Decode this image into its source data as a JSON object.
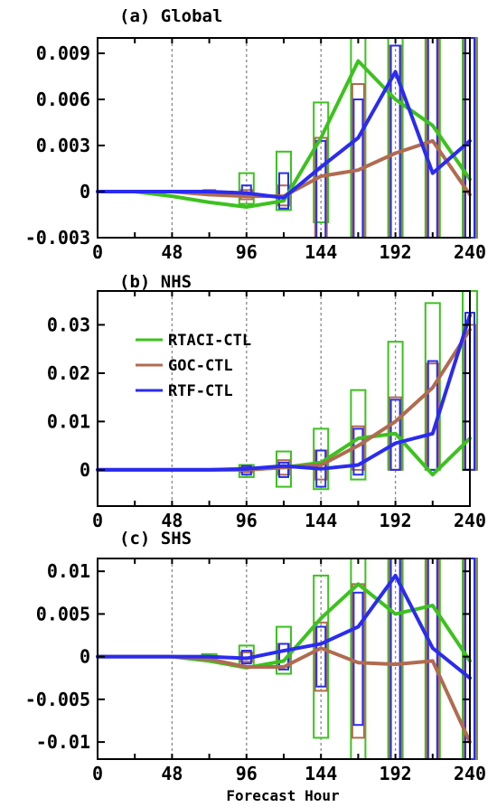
{
  "xlabel": "Forecast Hour",
  "colors": {
    "RTACI-CTL": "#3cc21e",
    "GOC-CTL": "#b06b50",
    "RTF-CTL": "#2b2bf0",
    "grid": "#888888",
    "frame": "#000000"
  },
  "legend": [
    {
      "name": "RTACI-CTL"
    },
    {
      "name": "GOC-CTL"
    },
    {
      "name": "RTF-CTL"
    }
  ],
  "chart_data": [
    {
      "type": "line",
      "title": "(a)  Global",
      "x": [
        0,
        24,
        48,
        72,
        96,
        120,
        144,
        168,
        192,
        216,
        240
      ],
      "xticks": [
        "0",
        "48",
        "96",
        "144",
        "192",
        "240"
      ],
      "xlim": [
        0,
        240
      ],
      "ylim": [
        -0.003,
        0.01
      ],
      "yticks": [
        "-0.003",
        "0",
        "0.003",
        "0.006",
        "0.009"
      ],
      "series": [
        {
          "name": "RTACI-CTL",
          "values": [
            0,
            0,
            -0.0003,
            -0.0007,
            -0.001,
            -0.0006,
            0.0035,
            0.0085,
            0.006,
            0.0043,
            0.0008
          ]
        },
        {
          "name": "GOC-CTL",
          "values": [
            0,
            0,
            0,
            -0.0002,
            -0.0003,
            -0.0003,
            0.001,
            0.0014,
            0.0025,
            0.0033,
            -0.0002
          ]
        },
        {
          "name": "RTF-CTL",
          "values": [
            0,
            0,
            0,
            0,
            -0.0001,
            -0.0004,
            0.0016,
            0.0035,
            0.0078,
            0.0012,
            0.0033
          ]
        }
      ],
      "boxes": [
        {
          "series": "RTACI-CTL",
          "x": 96,
          "low": -0.0008,
          "high": 0.0012
        },
        {
          "series": "RTACI-CTL",
          "x": 120,
          "low": -0.0012,
          "high": 0.0026
        },
        {
          "series": "RTACI-CTL",
          "x": 144,
          "low": -0.002,
          "high": 0.0058
        },
        {
          "series": "RTACI-CTL",
          "x": 168,
          "low": -0.003,
          "high": 0.0105
        },
        {
          "series": "RTACI-CTL",
          "x": 192,
          "low": -0.003,
          "high": 0.0105
        },
        {
          "series": "RTACI-CTL",
          "x": 216,
          "low": -0.003,
          "high": 0.0105
        },
        {
          "series": "RTACI-CTL",
          "x": 240,
          "low": -0.003,
          "high": 0.0105
        },
        {
          "series": "GOC-CTL",
          "x": 72,
          "low": -0.0002,
          "high": 0.0001
        },
        {
          "series": "GOC-CTL",
          "x": 96,
          "low": -0.0005,
          "high": 0.0001
        },
        {
          "series": "GOC-CTL",
          "x": 120,
          "low": -0.0009,
          "high": 0.0004
        },
        {
          "series": "GOC-CTL",
          "x": 144,
          "low": -0.003,
          "high": 0.0035
        },
        {
          "series": "GOC-CTL",
          "x": 168,
          "low": -0.003,
          "high": 0.007
        },
        {
          "series": "GOC-CTL",
          "x": 192,
          "low": -0.003,
          "high": 0.0095
        },
        {
          "series": "GOC-CTL",
          "x": 216,
          "low": -0.003,
          "high": 0.0105
        },
        {
          "series": "GOC-CTL",
          "x": 240,
          "low": -0.003,
          "high": 0.0105
        },
        {
          "series": "RTF-CTL",
          "x": 96,
          "low": -0.0003,
          "high": 0.0004
        },
        {
          "series": "RTF-CTL",
          "x": 120,
          "low": -0.0011,
          "high": 0.0012
        },
        {
          "series": "RTF-CTL",
          "x": 144,
          "low": -0.003,
          "high": 0.0033
        },
        {
          "series": "RTF-CTL",
          "x": 168,
          "low": -0.003,
          "high": 0.006
        },
        {
          "series": "RTF-CTL",
          "x": 192,
          "low": -0.003,
          "high": 0.0095
        },
        {
          "series": "RTF-CTL",
          "x": 216,
          "low": -0.003,
          "high": 0.0105
        },
        {
          "series": "RTF-CTL",
          "x": 240,
          "low": -0.003,
          "high": 0.0105
        }
      ]
    },
    {
      "type": "line",
      "title": "(b)  NHS",
      "x": [
        0,
        24,
        48,
        72,
        96,
        120,
        144,
        168,
        192,
        216,
        240
      ],
      "xticks": [
        "0",
        "48",
        "96",
        "144",
        "192",
        "240"
      ],
      "xlim": [
        0,
        240
      ],
      "ylim": [
        -0.0075,
        0.037
      ],
      "yticks": [
        "0",
        "0.01",
        "0.02",
        "0.03"
      ],
      "legend_position": "upper-left",
      "series": [
        {
          "name": "RTACI-CTL",
          "values": [
            0,
            0,
            0,
            0,
            0,
            0.0005,
            0.0015,
            0.0065,
            0.0075,
            -0.001,
            0.0065
          ]
        },
        {
          "name": "GOC-CTL",
          "values": [
            0,
            0,
            0,
            0,
            0,
            0.0005,
            0.001,
            0.005,
            0.01,
            0.017,
            0.029
          ]
        },
        {
          "name": "RTF-CTL",
          "values": [
            0,
            0,
            0,
            0,
            0.0002,
            0.0008,
            0.0002,
            0.001,
            0.0055,
            0.0075,
            0.032
          ]
        }
      ],
      "boxes": [
        {
          "series": "RTACI-CTL",
          "x": 96,
          "low": -0.0015,
          "high": 0.001
        },
        {
          "series": "RTACI-CTL",
          "x": 120,
          "low": -0.0035,
          "high": 0.0038
        },
        {
          "series": "RTACI-CTL",
          "x": 144,
          "low": -0.004,
          "high": 0.0085
        },
        {
          "series": "RTACI-CTL",
          "x": 168,
          "low": -0.002,
          "high": 0.0165
        },
        {
          "series": "RTACI-CTL",
          "x": 192,
          "low": 0.0,
          "high": 0.0265
        },
        {
          "series": "RTACI-CTL",
          "x": 216,
          "low": 0.0,
          "high": 0.0345
        },
        {
          "series": "RTACI-CTL",
          "x": 240,
          "low": 0.0,
          "high": 0.037
        },
        {
          "series": "GOC-CTL",
          "x": 96,
          "low": -0.0005,
          "high": 0.0005
        },
        {
          "series": "GOC-CTL",
          "x": 120,
          "low": -0.001,
          "high": 0.002
        },
        {
          "series": "GOC-CTL",
          "x": 144,
          "low": -0.002,
          "high": 0.004
        },
        {
          "series": "GOC-CTL",
          "x": 168,
          "low": 0.0,
          "high": 0.009
        },
        {
          "series": "GOC-CTL",
          "x": 192,
          "low": 0.0,
          "high": 0.015
        },
        {
          "series": "GOC-CTL",
          "x": 216,
          "low": 0.0,
          "high": 0.022
        },
        {
          "series": "GOC-CTL",
          "x": 240,
          "low": 0.0,
          "high": 0.03
        },
        {
          "series": "RTF-CTL",
          "x": 96,
          "low": -0.001,
          "high": 0.0008
        },
        {
          "series": "RTF-CTL",
          "x": 120,
          "low": -0.0015,
          "high": 0.0015
        },
        {
          "series": "RTF-CTL",
          "x": 144,
          "low": -0.0035,
          "high": 0.004
        },
        {
          "series": "RTF-CTL",
          "x": 168,
          "low": -0.001,
          "high": 0.0085
        },
        {
          "series": "RTF-CTL",
          "x": 192,
          "low": 0.0,
          "high": 0.0145
        },
        {
          "series": "RTF-CTL",
          "x": 216,
          "low": 0.0,
          "high": 0.0225
        },
        {
          "series": "RTF-CTL",
          "x": 240,
          "low": 0.0,
          "high": 0.0325
        }
      ]
    },
    {
      "type": "line",
      "title": "(c)  SHS",
      "x": [
        0,
        24,
        48,
        72,
        96,
        120,
        144,
        168,
        192,
        216,
        240
      ],
      "xticks": [
        "0",
        "48",
        "96",
        "144",
        "192",
        "240"
      ],
      "xlim": [
        0,
        240
      ],
      "ylim": [
        -0.012,
        0.0115
      ],
      "yticks": [
        "-0.01",
        "-0.005",
        "0",
        "0.005",
        "0.01"
      ],
      "series": [
        {
          "name": "RTACI-CTL",
          "values": [
            0,
            0,
            0,
            -0.0005,
            -0.0013,
            -0.0005,
            0.0045,
            0.0085,
            0.005,
            0.006,
            -0.0005
          ]
        },
        {
          "name": "GOC-CTL",
          "values": [
            0,
            0,
            0,
            -0.0003,
            -0.0012,
            -0.0012,
            0.001,
            -0.0007,
            -0.0009,
            -0.0005,
            -0.01
          ]
        },
        {
          "name": "RTF-CTL",
          "values": [
            0,
            0,
            0,
            0,
            -0.0002,
            0.0007,
            0.0015,
            0.0035,
            0.0095,
            0.001,
            -0.0025
          ]
        }
      ],
      "boxes": [
        {
          "series": "RTACI-CTL",
          "x": 72,
          "low": -0.0004,
          "high": 0.0003
        },
        {
          "series": "RTACI-CTL",
          "x": 96,
          "low": -0.0012,
          "high": 0.0013
        },
        {
          "series": "RTACI-CTL",
          "x": 120,
          "low": -0.002,
          "high": 0.0035
        },
        {
          "series": "RTACI-CTL",
          "x": 144,
          "low": -0.0095,
          "high": 0.0095
        },
        {
          "series": "RTACI-CTL",
          "x": 168,
          "low": -0.012,
          "high": 0.0115
        },
        {
          "series": "RTACI-CTL",
          "x": 192,
          "low": -0.012,
          "high": 0.0115
        },
        {
          "series": "RTACI-CTL",
          "x": 216,
          "low": -0.012,
          "high": 0.0115
        },
        {
          "series": "RTACI-CTL",
          "x": 240,
          "low": -0.012,
          "high": 0.0115
        },
        {
          "series": "GOC-CTL",
          "x": 96,
          "low": -0.0006,
          "high": 0.0005
        },
        {
          "series": "GOC-CTL",
          "x": 120,
          "low": -0.0012,
          "high": 0.0015
        },
        {
          "series": "GOC-CTL",
          "x": 144,
          "low": -0.004,
          "high": 0.004
        },
        {
          "series": "GOC-CTL",
          "x": 168,
          "low": -0.0095,
          "high": 0.0085
        },
        {
          "series": "GOC-CTL",
          "x": 192,
          "low": -0.012,
          "high": 0.0115
        },
        {
          "series": "GOC-CTL",
          "x": 216,
          "low": -0.012,
          "high": 0.0115
        },
        {
          "series": "GOC-CTL",
          "x": 240,
          "low": -0.012,
          "high": 0.0115
        },
        {
          "series": "RTF-CTL",
          "x": 96,
          "low": -0.0008,
          "high": 0.0007
        },
        {
          "series": "RTF-CTL",
          "x": 120,
          "low": -0.0015,
          "high": 0.0015
        },
        {
          "series": "RTF-CTL",
          "x": 144,
          "low": -0.0035,
          "high": 0.0035
        },
        {
          "series": "RTF-CTL",
          "x": 168,
          "low": -0.008,
          "high": 0.0075
        },
        {
          "series": "RTF-CTL",
          "x": 192,
          "low": -0.012,
          "high": 0.0115
        },
        {
          "series": "RTF-CTL",
          "x": 216,
          "low": -0.012,
          "high": 0.0115
        },
        {
          "series": "RTF-CTL",
          "x": 240,
          "low": -0.012,
          "high": 0.0115
        }
      ]
    }
  ]
}
